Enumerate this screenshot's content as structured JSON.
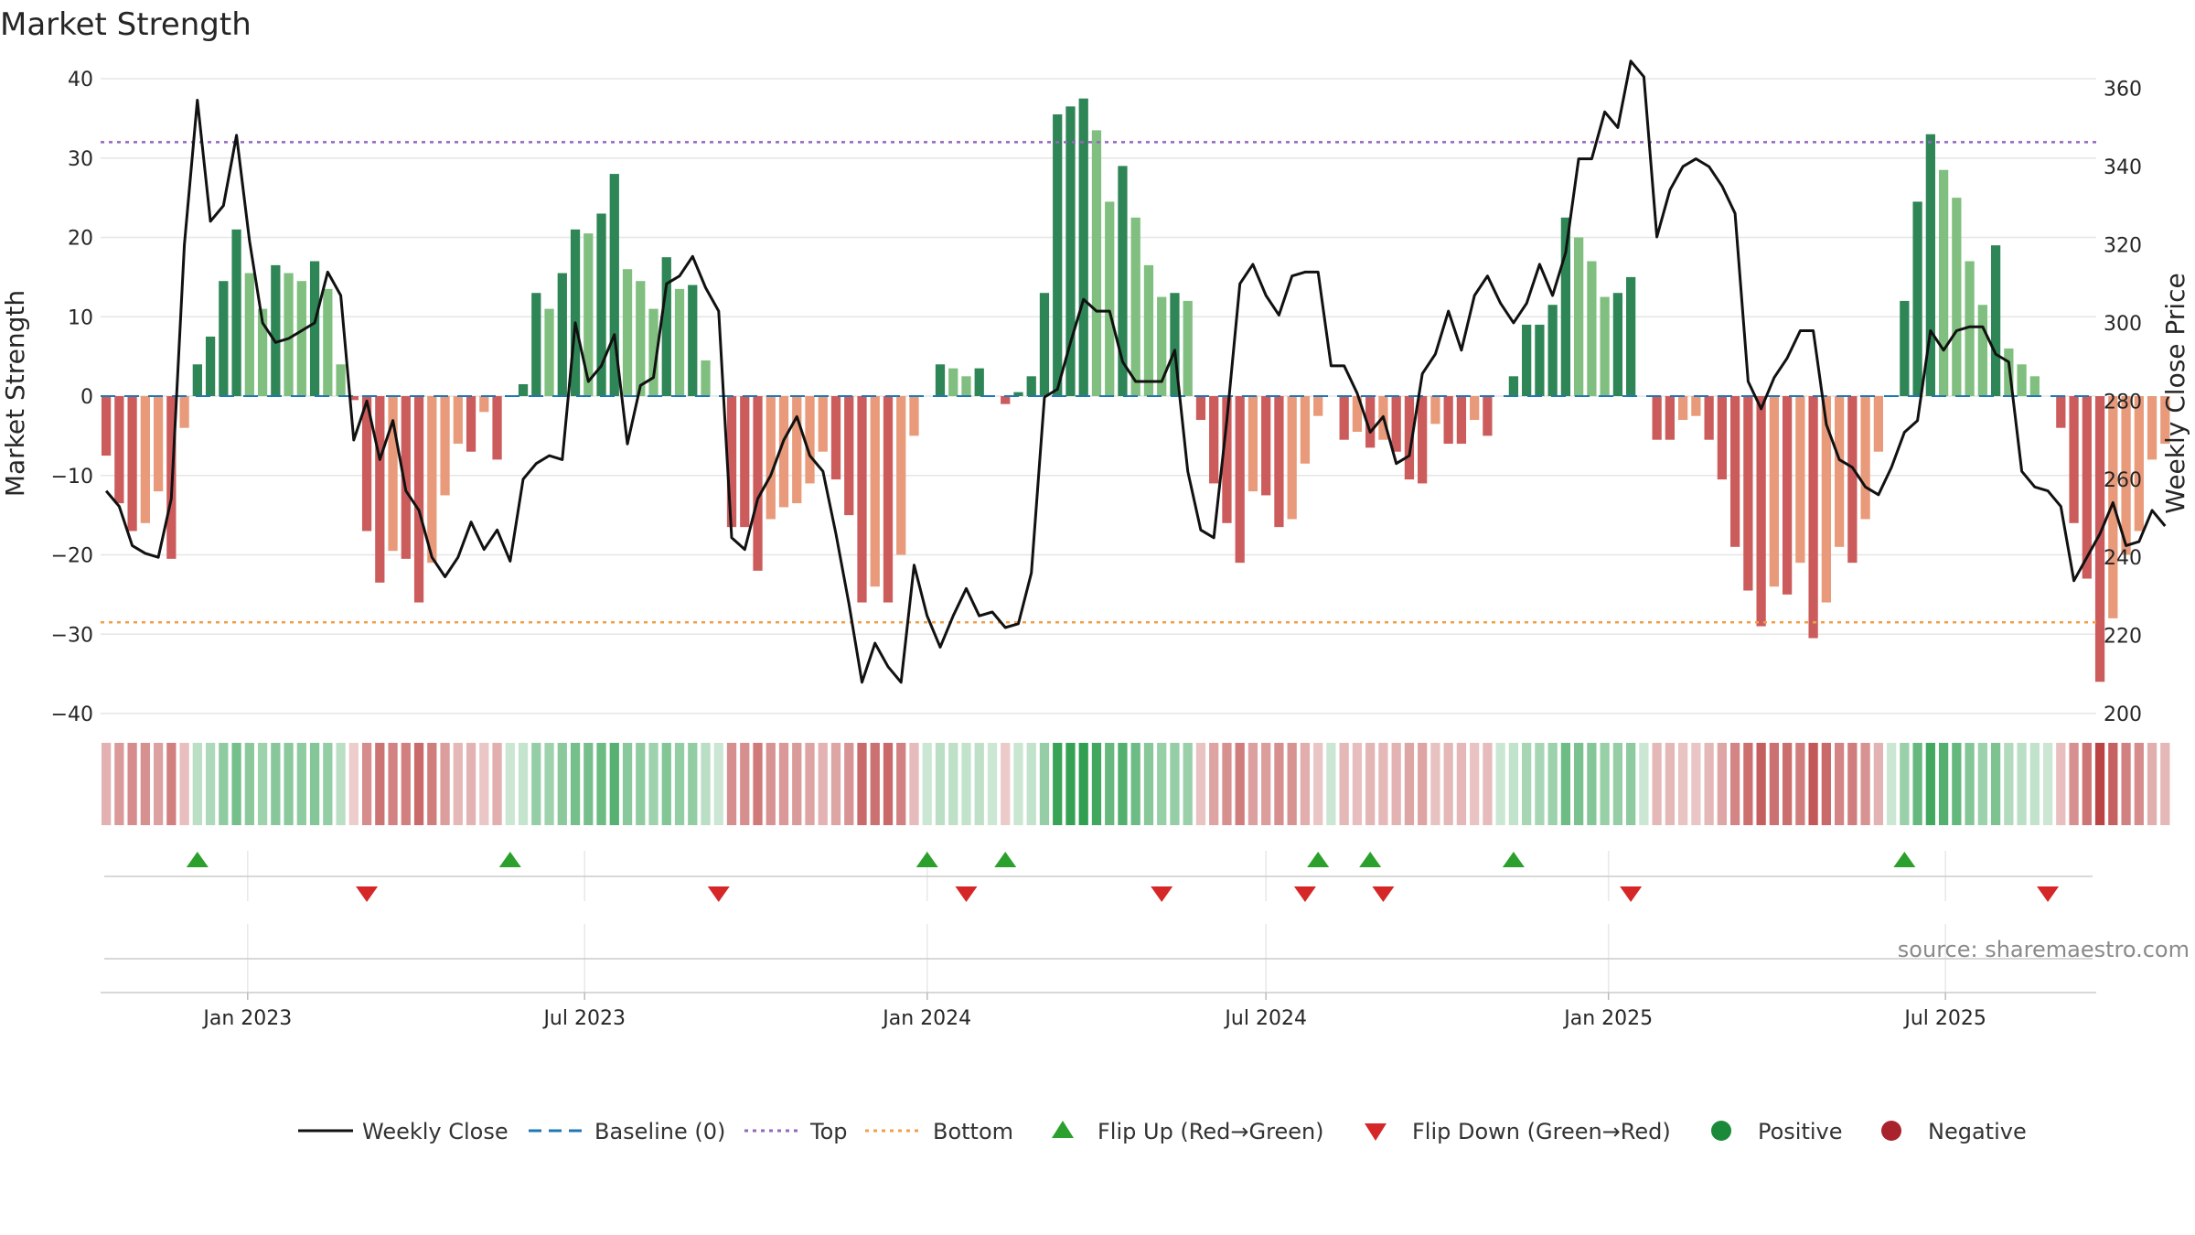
{
  "chart_data": {
    "type": "bar",
    "title": "Market Strength",
    "ylabel": "Market Strength",
    "y2label": "Weekly Close Price",
    "ylim": [
      -40,
      40
    ],
    "y2lim": [
      200,
      362.5
    ],
    "yticks": [
      -40,
      -30,
      -20,
      -10,
      0,
      10,
      20,
      30,
      40
    ],
    "y2ticks": [
      200,
      220,
      240,
      260,
      280,
      300,
      320,
      340,
      360
    ],
    "top_level": 32,
    "bottom_level": -28.5,
    "start_date": "2022-10-17",
    "interval_days": 7,
    "x_range": [
      "2022-10-14",
      "2025-09-20"
    ],
    "x_ticks": [
      {
        "date": "2023-01-01",
        "label": "Jan 2023"
      },
      {
        "date": "2023-07-01",
        "label": "Jul 2023"
      },
      {
        "date": "2024-01-01",
        "label": "Jan 2024"
      },
      {
        "date": "2024-07-01",
        "label": "Jul 2024"
      },
      {
        "date": "2025-01-01",
        "label": "Jan 2025"
      },
      {
        "date": "2025-07-01",
        "label": "Jul 2025"
      }
    ],
    "strength": [
      -7.5,
      -13.5,
      -17,
      -16,
      -12,
      -20.5,
      -4,
      4,
      7.5,
      14.5,
      21,
      15.5,
      11,
      16.5,
      15.5,
      14.5,
      17,
      13.5,
      4,
      -0.5,
      -17,
      -23.5,
      -19.5,
      -20.5,
      -26,
      -21,
      -12.5,
      -6,
      -7,
      -2,
      -8,
      0,
      1.5,
      13,
      11,
      15.5,
      21,
      20.5,
      23,
      28,
      16,
      14.5,
      11,
      17.5,
      13.5,
      14,
      4.5,
      0,
      -16.5,
      -16.5,
      -22,
      -15.5,
      -14,
      -13.5,
      -11,
      -7,
      -10.5,
      -15,
      -26,
      -24,
      -26,
      -20,
      -5,
      0,
      4,
      3.5,
      2.5,
      3.5,
      0,
      -1,
      0.5,
      2.5,
      13,
      35.5,
      36.5,
      37.5,
      33.5,
      24.5,
      29,
      22.5,
      16.5,
      12.5,
      13,
      12,
      -3,
      -11,
      -16,
      -21,
      -12,
      -12.5,
      -16.5,
      -15.5,
      -8.5,
      -2.5,
      0,
      -5.5,
      -4.5,
      -6.5,
      -5.5,
      -7,
      -10.5,
      -11,
      -3.5,
      -6,
      -6,
      -3,
      -5,
      0,
      2.5,
      9,
      9,
      11.5,
      22.5,
      20,
      17,
      12.5,
      13,
      15,
      0,
      -5.5,
      -5.5,
      -3,
      -2.5,
      -5.5,
      -10.5,
      -19,
      -24.5,
      -29,
      -24,
      -25,
      -21,
      -30.5,
      -26,
      -19,
      -21,
      -15.5,
      -7,
      0,
      12,
      24.5,
      33,
      28.5,
      25,
      17,
      11.5,
      19,
      6,
      4,
      2.5,
      0,
      -4,
      -16,
      -23,
      -36,
      -28,
      -20,
      -17,
      -8,
      -6
    ],
    "close": [
      257,
      253,
      243,
      241,
      240,
      255,
      320,
      357,
      326,
      330,
      348,
      321,
      300,
      295,
      296,
      298,
      300,
      313,
      307,
      270,
      280,
      265,
      275,
      257,
      252,
      240,
      235,
      240,
      249,
      242,
      247,
      239,
      260,
      264,
      266,
      265,
      300,
      285,
      289,
      297,
      269,
      284,
      286,
      310,
      312,
      317,
      309,
      303,
      245,
      242,
      255,
      261,
      270,
      276,
      266,
      262,
      246,
      228,
      208,
      218,
      212,
      208,
      238,
      225,
      217,
      225,
      232,
      225,
      226,
      222,
      223,
      236,
      281,
      283,
      295,
      306,
      303,
      303,
      290,
      285,
      285,
      285,
      293,
      262,
      247,
      245,
      275,
      310,
      315,
      307,
      302,
      312,
      313,
      313,
      289,
      289,
      282,
      272,
      276,
      264,
      266,
      287,
      292,
      303,
      293,
      307,
      312,
      305,
      300,
      305,
      315,
      307,
      318,
      342,
      342,
      354,
      350,
      367,
      363,
      322,
      334,
      340,
      342,
      340,
      335,
      328,
      285,
      278,
      286,
      291,
      298,
      298,
      274,
      265,
      263,
      258,
      256,
      263,
      272,
      275,
      298,
      293,
      298,
      299,
      299,
      292,
      290,
      262,
      258,
      257,
      253,
      234,
      240,
      246,
      254,
      243,
      244,
      252,
      248
    ],
    "flip_up_weeks": [
      7,
      31,
      63,
      69,
      93,
      97,
      108,
      138
    ],
    "flip_down_weeks": [
      20,
      47,
      66,
      81,
      92,
      98,
      117,
      149
    ],
    "series": [
      {
        "name": "Weekly Close",
        "color": "#111111"
      },
      {
        "name": "Baseline (0)",
        "color": "#1f77b4"
      },
      {
        "name": "Top",
        "color": "#9467bd"
      },
      {
        "name": "Bottom",
        "color": "#f0a04b"
      },
      {
        "name": "Flip Up (Red→Green)",
        "color": "#2ca02c"
      },
      {
        "name": "Flip Down (Green→Red)",
        "color": "#d62728"
      },
      {
        "name": "Positive",
        "color": "#1a8a3a"
      },
      {
        "name": "Negative",
        "color": "#a8232b"
      }
    ],
    "colors": {
      "bar_green_strong": "#2e8556",
      "bar_green_light": "#80bf80",
      "bar_red_strong": "#cc5c5c",
      "bar_red_light": "#e89a7a",
      "grid": "#e6e6e6"
    }
  },
  "source": "source: sharemaestro.com",
  "legend": {
    "weekly_close": "Weekly Close",
    "baseline": "Baseline (0)",
    "top": "Top",
    "bottom": "Bottom",
    "flip_up": "Flip Up (Red→Green)",
    "flip_down": "Flip Down (Green→Red)",
    "positive": "Positive",
    "negative": "Negative"
  }
}
